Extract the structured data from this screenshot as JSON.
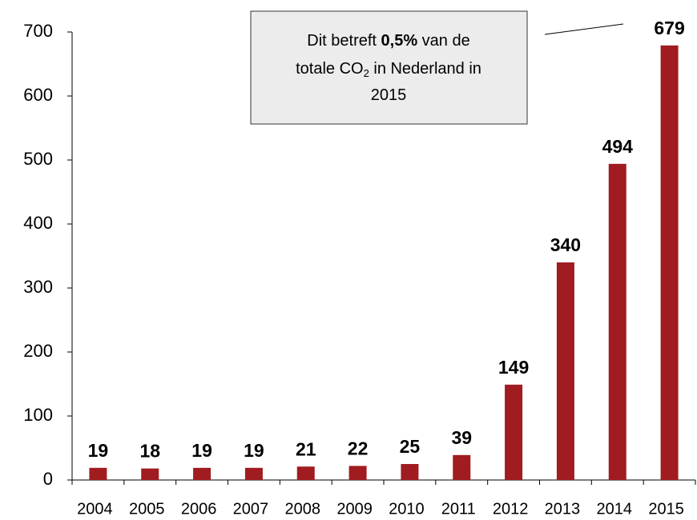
{
  "chart_data": {
    "type": "bar",
    "categories": [
      "2004",
      "2005",
      "2006",
      "2007",
      "2008",
      "2009",
      "2010",
      "2011",
      "2012",
      "2013",
      "2014",
      "2015"
    ],
    "values": [
      19,
      18,
      19,
      19,
      21,
      22,
      25,
      39,
      149,
      340,
      494,
      679
    ],
    "color": "#a01c20",
    "ylim": [
      0,
      700
    ],
    "yticks": [
      0,
      100,
      200,
      300,
      400,
      500,
      600,
      700
    ],
    "grid": false,
    "annotation": {
      "lines": [
        [
          "Dit betreft ",
          "0,5%",
          " van de"
        ],
        [
          "totale CO",
          "2",
          " in Nederland in"
        ],
        [
          "2015"
        ]
      ]
    }
  }
}
